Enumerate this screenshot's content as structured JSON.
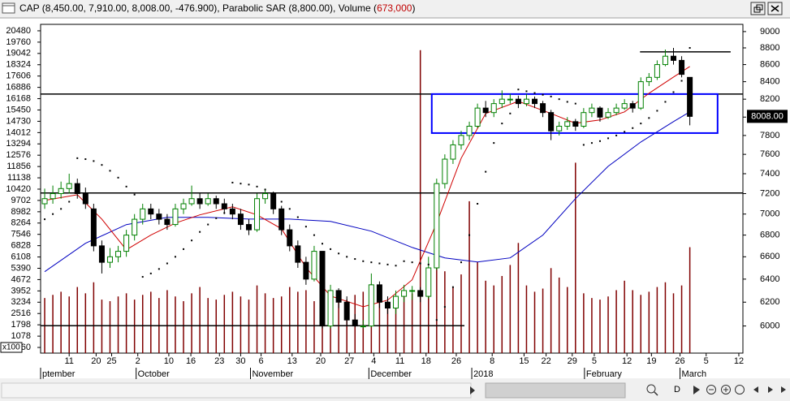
{
  "window": {
    "title_parts": [
      "CAP (8,450.00, 7,910.00, 8,008.00, -476.900), Parabolic SAR (8,800.00), Volume (",
      "673,000",
      ")"
    ],
    "d_button": "D"
  },
  "chart_data": {
    "type": "candlestick",
    "log_scale": true,
    "xlim": [
      -0.5,
      85.5
    ],
    "xticks": [
      {
        "value": 3,
        "label": "11"
      },
      {
        "value": 6.3,
        "label": "20"
      },
      {
        "value": 8.2,
        "label": "25"
      },
      {
        "value": 11.4,
        "label": "2"
      },
      {
        "value": 15.2,
        "label": "10"
      },
      {
        "value": 17.9,
        "label": "16"
      },
      {
        "value": 21.4,
        "label": "23"
      },
      {
        "value": 24,
        "label": "30"
      },
      {
        "value": 26.5,
        "label": "6"
      },
      {
        "value": 30.3,
        "label": "13"
      },
      {
        "value": 33.8,
        "label": "20"
      },
      {
        "value": 37.3,
        "label": "27"
      },
      {
        "value": 40.3,
        "label": "4"
      },
      {
        "value": 43.5,
        "label": "11"
      },
      {
        "value": 46.7,
        "label": "18"
      },
      {
        "value": 50.4,
        "label": "26"
      },
      {
        "value": 54.8,
        "label": "8"
      },
      {
        "value": 58.7,
        "label": "15"
      },
      {
        "value": 61.4,
        "label": "22"
      },
      {
        "value": 64.6,
        "label": "29"
      },
      {
        "value": 67.3,
        "label": "5"
      },
      {
        "value": 71.3,
        "label": "12"
      },
      {
        "value": 74.3,
        "label": "19"
      },
      {
        "value": 77.8,
        "label": "26"
      },
      {
        "value": 81,
        "label": "5"
      },
      {
        "value": 85,
        "label": "12"
      }
    ],
    "month_labels": [
      {
        "value": -0.5,
        "label": "ptember"
      },
      {
        "value": 11.2,
        "label": "October"
      },
      {
        "value": 25.2,
        "label": "November"
      },
      {
        "value": 39.7,
        "label": "December"
      },
      {
        "value": 52.3,
        "label": "2018"
      },
      {
        "value": 66.1,
        "label": "February"
      },
      {
        "value": 77.8,
        "label": "March"
      }
    ],
    "ylim": [
      5780,
      9090
    ],
    "yticks": [
      6000,
      6200,
      6400,
      6600,
      6800,
      7000,
      7200,
      7400,
      7600,
      7800,
      8000,
      8200,
      8400,
      8600,
      8800,
      9000
    ],
    "y2lim": [
      0,
      20890
    ],
    "y2ticks": [
      20480,
      19760,
      19042,
      18324,
      17606,
      16886,
      16168,
      15450,
      14730,
      14012,
      13294,
      12576,
      11856,
      11138,
      10420,
      9702,
      8982,
      8264,
      7546,
      6828,
      6108,
      5390,
      4672,
      3952,
      3234,
      2516,
      1798,
      1078,
      360
    ],
    "y2_unit_label": "x100",
    "up_color": "#008000",
    "down_color": "#000000",
    "ohlc": [
      [
        7100,
        7250,
        7050,
        7150
      ],
      [
        7150,
        7280,
        7100,
        7200
      ],
      [
        7200,
        7320,
        7150,
        7250
      ],
      [
        7250,
        7400,
        7200,
        7300
      ],
      [
        7300,
        7350,
        7150,
        7200
      ],
      [
        7200,
        7260,
        7050,
        7100
      ],
      [
        7050,
        7100,
        6650,
        6700
      ],
      [
        6700,
        6750,
        6450,
        6550
      ],
      [
        6550,
        6680,
        6500,
        6600
      ],
      [
        6600,
        6700,
        6550,
        6650
      ],
      [
        6650,
        6850,
        6600,
        6800
      ],
      [
        6800,
        7000,
        6750,
        6950
      ],
      [
        6950,
        7100,
        6900,
        7050
      ],
      [
        7050,
        7100,
        6950,
        7000
      ],
      [
        7000,
        7050,
        6900,
        6950
      ],
      [
        6950,
        7000,
        6850,
        6900
      ],
      [
        6900,
        7100,
        6880,
        7050
      ],
      [
        7050,
        7150,
        7000,
        7100
      ],
      [
        7100,
        7280,
        7080,
        7150
      ],
      [
        7150,
        7200,
        7050,
        7100
      ],
      [
        7100,
        7200,
        7080,
        7150
      ],
      [
        7150,
        7180,
        7050,
        7100
      ],
      [
        7100,
        7150,
        7000,
        7050
      ],
      [
        7050,
        7100,
        6950,
        7000
      ],
      [
        7000,
        7050,
        6850,
        6900
      ],
      [
        6900,
        6950,
        6800,
        6850
      ],
      [
        6850,
        7200,
        6830,
        7150
      ],
      [
        7150,
        7250,
        7100,
        7200
      ],
      [
        7200,
        7220,
        7000,
        7050
      ],
      [
        7050,
        7080,
        6800,
        6850
      ],
      [
        6850,
        6900,
        6650,
        6700
      ],
      [
        6700,
        6750,
        6500,
        6550
      ],
      [
        6550,
        6600,
        6350,
        6400
      ],
      [
        6400,
        6700,
        6380,
        6650
      ],
      [
        6650,
        6650,
        5980,
        6000
      ],
      [
        6000,
        6350,
        5980,
        6300
      ],
      [
        6300,
        6320,
        6150,
        6200
      ],
      [
        6200,
        6250,
        6000,
        6050
      ],
      [
        6050,
        6100,
        5990,
        6000
      ],
      [
        6000,
        6050,
        5980,
        6000
      ],
      [
        6000,
        6450,
        5990,
        6350
      ],
      [
        6350,
        6380,
        6150,
        6200
      ],
      [
        6200,
        6250,
        6100,
        6150
      ],
      [
        6150,
        6300,
        6100,
        6250
      ],
      [
        6250,
        6350,
        6200,
        6300
      ],
      [
        6300,
        6340,
        6220,
        6300
      ],
      [
        6300,
        6330,
        6200,
        6250
      ],
      [
        6250,
        6600,
        6230,
        6500
      ],
      [
        6500,
        7350,
        6480,
        7300
      ],
      [
        7300,
        7600,
        7250,
        7550
      ],
      [
        7550,
        7750,
        7500,
        7700
      ],
      [
        7700,
        7850,
        7650,
        7800
      ],
      [
        7800,
        7950,
        7750,
        7900
      ],
      [
        7900,
        8150,
        7880,
        8100
      ],
      [
        8100,
        8180,
        8000,
        8050
      ],
      [
        8050,
        8200,
        8000,
        8150
      ],
      [
        8150,
        8300,
        8100,
        8200
      ],
      [
        8200,
        8260,
        8150,
        8200
      ],
      [
        8200,
        8240,
        8100,
        8150
      ],
      [
        8150,
        8260,
        8120,
        8200
      ],
      [
        8200,
        8230,
        8100,
        8150
      ],
      [
        8150,
        8180,
        8000,
        8050
      ],
      [
        8050,
        8080,
        7750,
        7850
      ],
      [
        7850,
        7950,
        7800,
        7900
      ],
      [
        7900,
        8000,
        7860,
        7950
      ],
      [
        7950,
        7980,
        7850,
        7900
      ],
      [
        7900,
        8100,
        7880,
        8050
      ],
      [
        8050,
        8150,
        8000,
        8100
      ],
      [
        8100,
        8120,
        7950,
        8000
      ],
      [
        8000,
        8100,
        7980,
        8050
      ],
      [
        8050,
        8150,
        8020,
        8100
      ],
      [
        8100,
        8200,
        8080,
        8150
      ],
      [
        8150,
        8180,
        8050,
        8100
      ],
      [
        8100,
        8450,
        8080,
        8400
      ],
      [
        8400,
        8500,
        8350,
        8450
      ],
      [
        8450,
        8650,
        8420,
        8600
      ],
      [
        8600,
        8780,
        8580,
        8700
      ],
      [
        8700,
        8800,
        8600,
        8650
      ],
      [
        8650,
        8700,
        8450,
        8485
      ],
      [
        8450,
        8450,
        7910,
        8008
      ]
    ],
    "volume": {
      "axis": "y2",
      "color": "#800000",
      "values": [
        3500,
        3700,
        3900,
        3600,
        4200,
        3800,
        4500,
        3400,
        3300,
        3600,
        3800,
        3400,
        3700,
        3900,
        3500,
        4000,
        3600,
        3300,
        3800,
        4200,
        3500,
        3400,
        3700,
        3900,
        3600,
        3400,
        4300,
        3800,
        3500,
        3600,
        4200,
        3900,
        4000,
        3300,
        4100,
        3800,
        3600,
        3400,
        3700,
        3900,
        4400,
        3700,
        3300,
        3500,
        3600,
        3800,
        19250,
        4200,
        6000,
        5200,
        4200,
        5000,
        9650,
        5800,
        4600,
        4300,
        4900,
        5600,
        7000,
        4300,
        3900,
        4100,
        5400,
        4800,
        4200,
        12100,
        3800,
        3500,
        3400,
        3600,
        4000,
        4600,
        4000,
        3700,
        3900,
        4200,
        4500,
        3800,
        4300,
        6730
      ]
    },
    "ma_fast": {
      "color": "#d00000",
      "x": [
        0,
        4,
        7,
        10,
        13,
        16,
        19,
        23,
        26,
        29,
        32,
        35,
        39,
        42,
        45,
        48,
        51,
        54,
        58,
        62,
        65,
        68,
        71,
        74,
        77,
        79
      ],
      "values": [
        7133,
        7189,
        6952,
        6664,
        6800,
        6914,
        6992,
        7070,
        6992,
        6860,
        6503,
        6253,
        6162,
        6218,
        6394,
        6914,
        7560,
        8040,
        8176,
        8040,
        7933,
        7968,
        8058,
        8267,
        8454,
        8578
      ]
    },
    "ma_slow": {
      "color": "#0000c0",
      "x": [
        0,
        5,
        10,
        15,
        20,
        25,
        30,
        35,
        40,
        45,
        49,
        53,
        57,
        61,
        65,
        69,
        73,
        77,
        79
      ],
      "values": [
        6466,
        6724,
        6899,
        6968,
        6968,
        6952,
        6952,
        6929,
        6837,
        6686,
        6590,
        6553,
        6590,
        6800,
        7150,
        7476,
        7731,
        7951,
        8058
      ]
    },
    "sar": {
      "color": "#000000",
      "values": [
        6950,
        7000,
        7050,
        7120,
        7560,
        7550,
        7530,
        7490,
        7430,
        7360,
        7270,
        7190,
        6420,
        6450,
        6490,
        6540,
        6600,
        6670,
        6750,
        6830,
        6900,
        6960,
        7010,
        7310,
        7300,
        7290,
        7270,
        7240,
        7190,
        7120,
        7050,
        6970,
        6880,
        6800,
        6720,
        6670,
        6630,
        6600,
        6580,
        6560,
        6550,
        6540,
        6530,
        6520,
        6560,
        6550,
        6540,
        6530,
        6050,
        6160,
        6330,
        6550,
        6800,
        7100,
        7420,
        7720,
        7930,
        8040,
        8310,
        8290,
        8270,
        8250,
        8230,
        8200,
        8170,
        8150,
        7700,
        7720,
        7740,
        7770,
        7800,
        7840,
        7880,
        7930,
        7990,
        8070,
        8170,
        8280,
        8410,
        8800
      ]
    },
    "hlines": [
      {
        "value": 8258,
        "x": [
          -0.5,
          85.5
        ]
      },
      {
        "value": 7206,
        "x": [
          -0.5,
          85.5
        ]
      },
      {
        "value": 8752,
        "x": [
          72.9,
          84
        ]
      },
      {
        "value": 6002,
        "x": [
          -0.5,
          51.4
        ]
      }
    ],
    "box": {
      "color": "#0000ff",
      "x": [
        47.4,
        82.4
      ],
      "y": [
        7826,
        8258
      ]
    },
    "last_price": {
      "value": 8008,
      "label": "8008.00"
    }
  }
}
